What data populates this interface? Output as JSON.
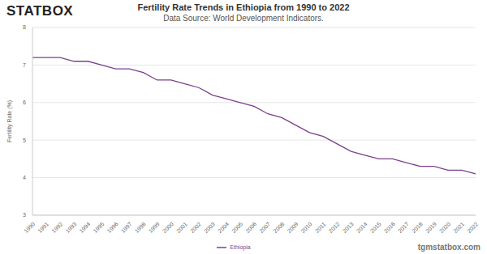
{
  "chart_data": {
    "type": "line",
    "logo": "STATBOX",
    "title": "Fertility Rate Trends in Ethiopia from 1990 to 2022",
    "subtitle": "Data Source: World Development Indicators.",
    "footer": "tgmstatbox.com",
    "y_label": "Fertility Rate (%)",
    "categories": [
      "1990",
      "1991",
      "1992",
      "1993",
      "1994",
      "1995",
      "1996",
      "1997",
      "1998",
      "1999",
      "2000",
      "2001",
      "2002",
      "2003",
      "2004",
      "2005",
      "2006",
      "2007",
      "2008",
      "2009",
      "2010",
      "2011",
      "2012",
      "2013",
      "2014",
      "2015",
      "2016",
      "2017",
      "2018",
      "2019",
      "2020",
      "2021",
      "2022"
    ],
    "series": [
      {
        "name": "Ethiopia",
        "color": "#7b3f8c",
        "values": [
          7.2,
          7.2,
          7.2,
          7.1,
          7.1,
          7.0,
          6.9,
          6.9,
          6.8,
          6.6,
          6.6,
          6.5,
          6.4,
          6.2,
          6.1,
          6.0,
          5.9,
          5.7,
          5.6,
          5.4,
          5.2,
          5.1,
          4.9,
          4.7,
          4.6,
          4.5,
          4.5,
          4.4,
          4.3,
          4.3,
          4.2,
          4.2,
          4.1
        ]
      }
    ],
    "ylim": [
      3,
      8
    ],
    "yticks": [
      3,
      4,
      5,
      6,
      7,
      8
    ],
    "grid": true,
    "legend": "bottom"
  }
}
